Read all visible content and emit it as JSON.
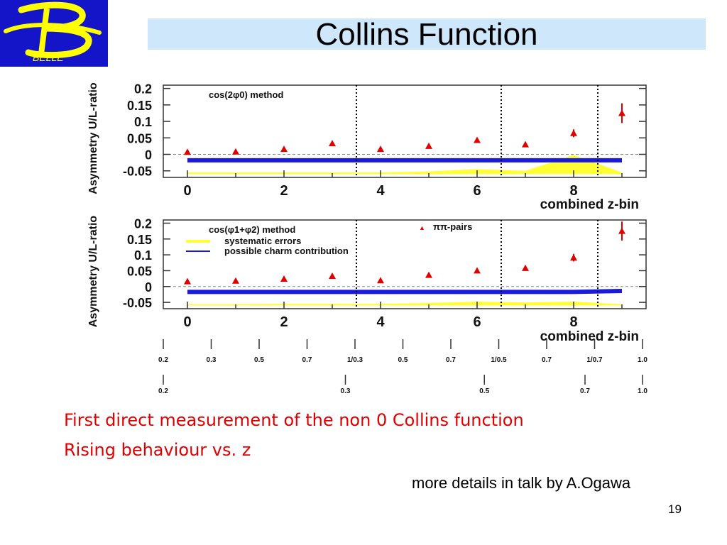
{
  "logo": {
    "text": "BELLE",
    "icon": "belle-b-logo"
  },
  "title": "Collins Function",
  "chart_data": [
    {
      "type": "scatter",
      "title": "cos(2φ0) method",
      "xlabel": "combined z-bin",
      "ylabel": "Asymmetry U/L-ratio",
      "xlim": [
        -0.5,
        9.5
      ],
      "ylim": [
        -0.07,
        0.21
      ],
      "xticks": [
        "0",
        "2",
        "4",
        "6",
        "8"
      ],
      "yticks": [
        "0.2",
        "0.15",
        "0.1",
        "0.05",
        "0",
        "-0.05"
      ],
      "dividers": [
        3.5,
        6.5,
        8.5
      ],
      "series": [
        {
          "name": "ππ-pairs",
          "x": [
            0,
            1,
            2,
            3,
            4,
            5,
            6,
            7,
            8,
            9
          ],
          "values": [
            0.007,
            0.008,
            0.016,
            0.033,
            0.016,
            0.025,
            0.043,
            0.03,
            0.064,
            0.125
          ],
          "errors": [
            0.002,
            0.002,
            0.002,
            0.003,
            0.002,
            0.003,
            0.004,
            0.008,
            0.012,
            0.03
          ]
        },
        {
          "name": "systematic errors",
          "x": [
            0,
            1,
            2,
            3,
            4,
            5,
            6,
            7,
            8,
            9
          ],
          "lower": [
            -0.06,
            -0.06,
            -0.06,
            -0.06,
            -0.06,
            -0.06,
            -0.06,
            -0.06,
            -0.06,
            -0.06
          ],
          "upper": [
            -0.055,
            -0.055,
            -0.055,
            -0.055,
            -0.055,
            -0.052,
            -0.045,
            -0.05,
            -0.002,
            -0.055
          ]
        },
        {
          "name": "possible charm contribution",
          "x": [
            0,
            9
          ],
          "values": [
            -0.018,
            -0.018
          ]
        }
      ],
      "legend": []
    },
    {
      "type": "scatter",
      "title": "cos(φ1+φ2) method",
      "xlabel": "combined z-bin",
      "ylabel": "Asymmetry U/L-ratio",
      "xlim": [
        -0.5,
        9.5
      ],
      "ylim": [
        -0.07,
        0.21
      ],
      "xticks": [
        "0",
        "2",
        "4",
        "6",
        "8"
      ],
      "yticks": [
        "0.2",
        "0.15",
        "0.1",
        "0.05",
        "0",
        "-0.05"
      ],
      "dividers": [
        3.5,
        6.5,
        8.5
      ],
      "series": [
        {
          "name": "ππ-pairs",
          "x": [
            0,
            1,
            2,
            3,
            4,
            5,
            6,
            7,
            8,
            9
          ],
          "values": [
            0.016,
            0.018,
            0.024,
            0.033,
            0.019,
            0.036,
            0.05,
            0.058,
            0.091,
            0.175
          ],
          "errors": [
            0.002,
            0.002,
            0.003,
            0.003,
            0.002,
            0.003,
            0.004,
            0.008,
            0.012,
            0.03
          ]
        },
        {
          "name": "systematic errors",
          "x": [
            0,
            1,
            2,
            3,
            4,
            5,
            6,
            7,
            8,
            9
          ],
          "lower": [
            -0.06,
            -0.06,
            -0.06,
            -0.06,
            -0.06,
            -0.06,
            -0.06,
            -0.06,
            -0.06,
            -0.06
          ],
          "upper": [
            -0.056,
            -0.056,
            -0.055,
            -0.055,
            -0.055,
            -0.052,
            -0.048,
            -0.05,
            -0.048,
            -0.056
          ]
        },
        {
          "name": "possible charm contribution",
          "x": [
            0,
            8,
            9
          ],
          "values": [
            -0.017,
            -0.017,
            -0.014
          ]
        }
      ],
      "legend": [
        "ππ-pairs",
        "systematic errors",
        "possible charm contribution"
      ]
    }
  ],
  "z_scales": {
    "row1": [
      "0.2",
      "0.3",
      "0.5",
      "0.7",
      "1/0.3",
      "0.5",
      "0.7",
      "1/0.5",
      "0.7",
      "1/0.7",
      "1.0"
    ],
    "row2": [
      "0.2",
      "0.3",
      "0.5",
      "0.7",
      "1.0"
    ]
  },
  "notes": [
    "First direct measurement of the non 0 Collins function",
    "Rising behaviour vs. z"
  ],
  "details": "more details in talk by A.Ogawa",
  "page_number": "19",
  "colors": {
    "points": "#e00000",
    "band": "#ffff33",
    "charm": "#1a1adc",
    "logo_bg": "#1414c8",
    "logo_fg": "#ffff00",
    "title_bar": "#cfe7fb"
  }
}
